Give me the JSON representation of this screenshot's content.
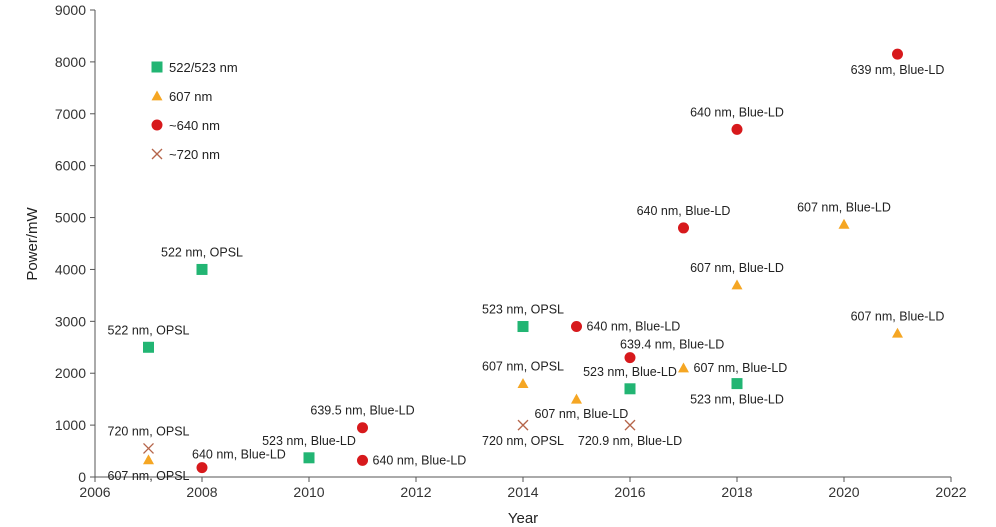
{
  "chart_data": {
    "type": "scatter",
    "xlabel": "Year",
    "ylabel": "Power/mW",
    "xlim": [
      2006,
      2022
    ],
    "ylim": [
      0,
      9000
    ],
    "xticks": [
      "2006",
      "2008",
      "2010",
      "2012",
      "2014",
      "2016",
      "2018",
      "2020",
      "2022"
    ],
    "yticks": [
      "0",
      "1000",
      "2000",
      "3000",
      "4000",
      "5000",
      "6000",
      "7000",
      "8000",
      "9000"
    ],
    "grid": false,
    "legend_position": "top-left",
    "series": [
      {
        "name": "522/523 nm",
        "marker": "square",
        "color": "#22b573",
        "points": [
          {
            "x": 2007,
            "y": 2500,
            "label": "522 nm, OPSL",
            "label_pos": "above"
          },
          {
            "x": 2008,
            "y": 4000,
            "label": "522 nm, OPSL",
            "label_pos": "above"
          },
          {
            "x": 2010,
            "y": 370,
            "label": "523 nm, Blue-LD",
            "label_pos": "above"
          },
          {
            "x": 2014,
            "y": 2900,
            "label": "523 nm, OPSL",
            "label_pos": "above"
          },
          {
            "x": 2016,
            "y": 1700,
            "label": "523 nm, Blue-LD",
            "label_pos": "above"
          },
          {
            "x": 2018,
            "y": 1800,
            "label": "523 nm, Blue-LD",
            "label_pos": "below"
          }
        ]
      },
      {
        "name": "607 nm",
        "marker": "triangle",
        "color": "#f5a623",
        "points": [
          {
            "x": 2007,
            "y": 330,
            "label": "607 nm, OPSL",
            "label_pos": "below"
          },
          {
            "x": 2014,
            "y": 1800,
            "label": "607 nm, OPSL",
            "label_pos": "above"
          },
          {
            "x": 2015,
            "y": 1500,
            "label": "607 nm, Blue-LD",
            "label_pos": "below-right"
          },
          {
            "x": 2017,
            "y": 2100,
            "label": "607 nm, Blue-LD",
            "label_pos": "right"
          },
          {
            "x": 2018,
            "y": 3700,
            "label": "607 nm, Blue-LD",
            "label_pos": "above"
          },
          {
            "x": 2020,
            "y": 4870,
            "label": "607 nm, Blue-LD",
            "label_pos": "above"
          },
          {
            "x": 2021,
            "y": 2770,
            "label": "607 nm, Blue-LD",
            "label_pos": "above"
          }
        ]
      },
      {
        "name": "~640 nm",
        "marker": "circle",
        "color": "#d7191c",
        "points": [
          {
            "x": 2008,
            "y": 180,
            "label": "640 nm, Blue-LD",
            "label_pos": "above-right"
          },
          {
            "x": 2011,
            "y": 950,
            "label": "639.5 nm, Blue-LD",
            "label_pos": "above"
          },
          {
            "x": 2011,
            "y": 320,
            "label": "640 nm, Blue-LD",
            "label_pos": "right"
          },
          {
            "x": 2015,
            "y": 2900,
            "label": "640 nm, Blue-LD",
            "label_pos": "right"
          },
          {
            "x": 2016,
            "y": 2300,
            "label": "639.4 nm, Blue-LD",
            "label_pos": "above-right"
          },
          {
            "x": 2017,
            "y": 4800,
            "label": "640 nm, Blue-LD",
            "label_pos": "above"
          },
          {
            "x": 2018,
            "y": 6700,
            "label": "640 nm, Blue-LD",
            "label_pos": "above"
          },
          {
            "x": 2021,
            "y": 8150,
            "label": "639 nm, Blue-LD",
            "label_pos": "below"
          }
        ]
      },
      {
        "name": "~720 nm",
        "marker": "cross",
        "color": "#b5654a",
        "points": [
          {
            "x": 2007,
            "y": 550,
            "label": "720 nm, OPSL",
            "label_pos": "above"
          },
          {
            "x": 2014,
            "y": 1000,
            "label": "720 nm, OPSL",
            "label_pos": "below"
          },
          {
            "x": 2016,
            "y": 1000,
            "label": "720.9 nm, Blue-LD",
            "label_pos": "below"
          }
        ]
      }
    ]
  }
}
